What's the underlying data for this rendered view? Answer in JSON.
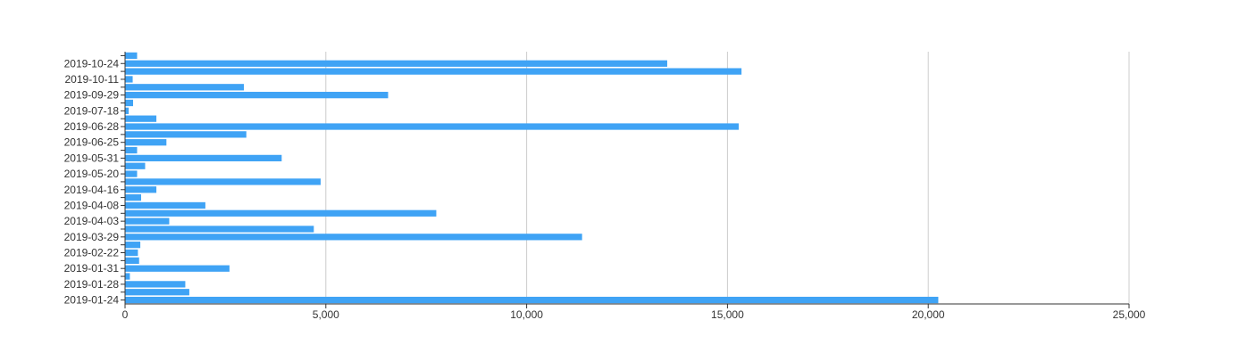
{
  "chart_data": {
    "type": "bar",
    "orientation": "horizontal",
    "title": "",
    "xlabel": "",
    "ylabel": "",
    "xlim": [
      0,
      25000
    ],
    "x_ticks": [
      0,
      5000,
      10000,
      15000,
      20000,
      25000
    ],
    "x_tick_labels": [
      "0",
      "5,000",
      "10,000",
      "15,000",
      "20,000",
      "25,000"
    ],
    "grid": "vertical",
    "legend": "none",
    "bar_color": "#3fa3f5",
    "category_order": "bottom-to-top",
    "categories": [
      "2019-01-24",
      "",
      "2019-01-28",
      "",
      "2019-01-31",
      "",
      "2019-02-22",
      "",
      "2019-03-29",
      "",
      "2019-04-03",
      "",
      "2019-04-08",
      "",
      "2019-04-16",
      "",
      "2019-05-20",
      "",
      "2019-05-31",
      "",
      "2019-06-25",
      "",
      "2019-06-28",
      "",
      "2019-07-18",
      "",
      "2019-09-29",
      "",
      "2019-10-11",
      "",
      "2019-10-24",
      ""
    ],
    "values": [
      20250,
      1600,
      1500,
      120,
      2600,
      350,
      320,
      380,
      11380,
      4700,
      1100,
      7750,
      2000,
      400,
      780,
      4870,
      300,
      500,
      3900,
      300,
      1030,
      3020,
      15280,
      780,
      90,
      200,
      6550,
      2960,
      190,
      15350,
      13500,
      300
    ]
  }
}
